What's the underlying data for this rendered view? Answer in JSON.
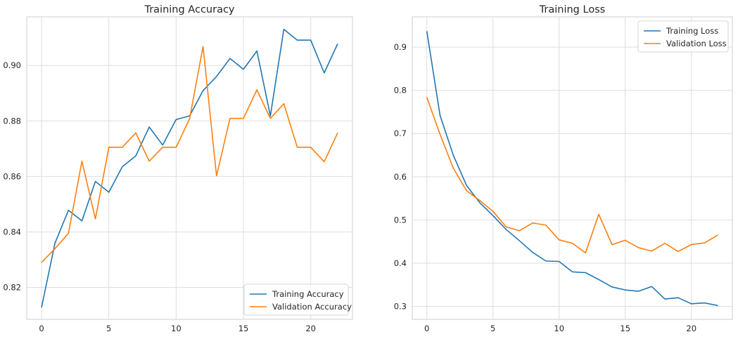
{
  "colors": {
    "series_blue": "#1f77b4",
    "series_orange": "#ff7f0e",
    "grid": "#dedede",
    "background": "#ffffff"
  },
  "chart_data": [
    {
      "type": "line",
      "title": "Training Accuracy",
      "xlabel": "",
      "ylabel": "",
      "grid": true,
      "legend_position": "bottom-right",
      "xlim": [
        -1.1,
        23.1
      ],
      "ylim": [
        0.8085,
        0.9175
      ],
      "xticks": [
        0,
        5,
        10,
        15,
        20
      ],
      "yticks": [
        0.82,
        0.84,
        0.86,
        0.88,
        0.9
      ],
      "ytick_labels": [
        "0.82",
        "0.84",
        "0.86",
        "0.88",
        "0.90"
      ],
      "x": [
        0,
        1,
        2,
        3,
        4,
        5,
        6,
        7,
        8,
        9,
        10,
        11,
        12,
        13,
        14,
        15,
        16,
        17,
        18,
        19,
        20,
        21,
        22
      ],
      "series": [
        {
          "name": "Training Accuracy",
          "color": "#1f77b4",
          "values": [
            0.8128,
            0.836,
            0.8478,
            0.844,
            0.8582,
            0.8543,
            0.8635,
            0.8674,
            0.8778,
            0.8713,
            0.8805,
            0.8818,
            0.8909,
            0.896,
            0.9025,
            0.8986,
            0.9052,
            0.8818,
            0.913,
            0.9091,
            0.9091,
            0.8973,
            0.9078
          ]
        },
        {
          "name": "Validation Accuracy",
          "color": "#ff7f0e",
          "values": [
            0.829,
            0.834,
            0.8395,
            0.8655,
            0.8447,
            0.8705,
            0.8705,
            0.8757,
            0.8655,
            0.8705,
            0.8705,
            0.8808,
            0.9068,
            0.8602,
            0.8809,
            0.8809,
            0.8912,
            0.8809,
            0.8862,
            0.8705,
            0.8705,
            0.8653,
            0.8757
          ]
        }
      ]
    },
    {
      "type": "line",
      "title": "Training Loss",
      "xlabel": "",
      "ylabel": "",
      "grid": true,
      "legend_position": "top-right",
      "xlim": [
        -1.1,
        23.1
      ],
      "ylim": [
        0.27,
        0.97
      ],
      "xticks": [
        0,
        5,
        10,
        15,
        20
      ],
      "yticks": [
        0.3,
        0.4,
        0.5,
        0.6,
        0.7,
        0.8,
        0.9
      ],
      "ytick_labels": [
        "0.3",
        "0.4",
        "0.5",
        "0.6",
        "0.7",
        "0.8",
        "0.9"
      ],
      "x": [
        0,
        1,
        2,
        3,
        4,
        5,
        6,
        7,
        8,
        9,
        10,
        11,
        12,
        13,
        14,
        15,
        16,
        17,
        18,
        19,
        20,
        21,
        22
      ],
      "series": [
        {
          "name": "Training Loss",
          "color": "#1f77b4",
          "values": [
            0.937,
            0.742,
            0.65,
            0.58,
            0.54,
            0.51,
            0.478,
            0.452,
            0.425,
            0.405,
            0.404,
            0.38,
            0.378,
            0.362,
            0.345,
            0.338,
            0.335,
            0.346,
            0.317,
            0.32,
            0.306,
            0.308,
            0.302
          ]
        },
        {
          "name": "Validation Loss",
          "color": "#ff7f0e",
          "values": [
            0.784,
            0.698,
            0.62,
            0.568,
            0.545,
            0.52,
            0.484,
            0.475,
            0.493,
            0.488,
            0.454,
            0.446,
            0.424,
            0.513,
            0.443,
            0.453,
            0.436,
            0.428,
            0.446,
            0.427,
            0.443,
            0.447,
            0.465
          ]
        }
      ]
    }
  ]
}
